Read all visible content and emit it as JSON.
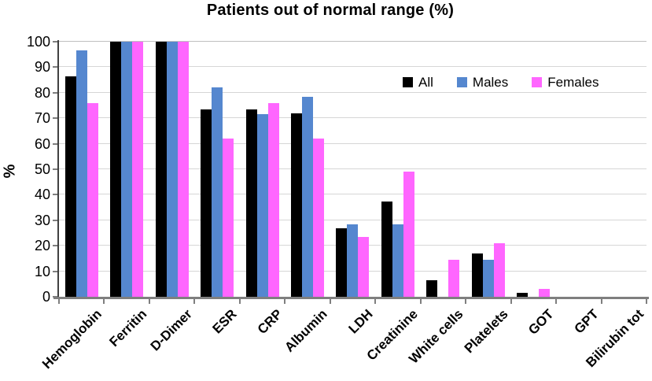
{
  "chart_data": {
    "type": "bar",
    "title": "Patients out of normal range (%)",
    "xlabel": "",
    "ylabel": "%",
    "ylim": [
      0,
      100
    ],
    "ytick_step": 10,
    "grid": true,
    "legend_position": "inside-top-right",
    "categories": [
      "Hemoglobin",
      "Ferritin",
      "D-Dimer",
      "ESR",
      "CRP",
      "Albumin",
      "LDH",
      "Creatinine",
      "White cells",
      "Platelets",
      "GOT",
      "GPT",
      "Bilirubin tot"
    ],
    "series": [
      {
        "name": "All",
        "color": "#000000",
        "values": [
          86.5,
          100,
          100,
          73.5,
          73.5,
          72,
          27,
          37.5,
          6.5,
          17,
          1.5,
          0,
          0
        ]
      },
      {
        "name": "Males",
        "color": "#5587cf",
        "values": [
          96.5,
          100,
          100,
          82,
          71.5,
          78.5,
          28.5,
          28.5,
          0,
          14.5,
          0,
          0,
          0
        ]
      },
      {
        "name": "Females",
        "color": "#ff66ff",
        "values": [
          76,
          100,
          100,
          62,
          76,
          62,
          23.5,
          49,
          14.5,
          21,
          3,
          0,
          0
        ]
      }
    ]
  },
  "colors": {
    "background": "#ffffff",
    "gridline": "#d6d6d6",
    "y_axis": "#404040",
    "x_axis": "#7f7f7f",
    "text": "#000000"
  }
}
